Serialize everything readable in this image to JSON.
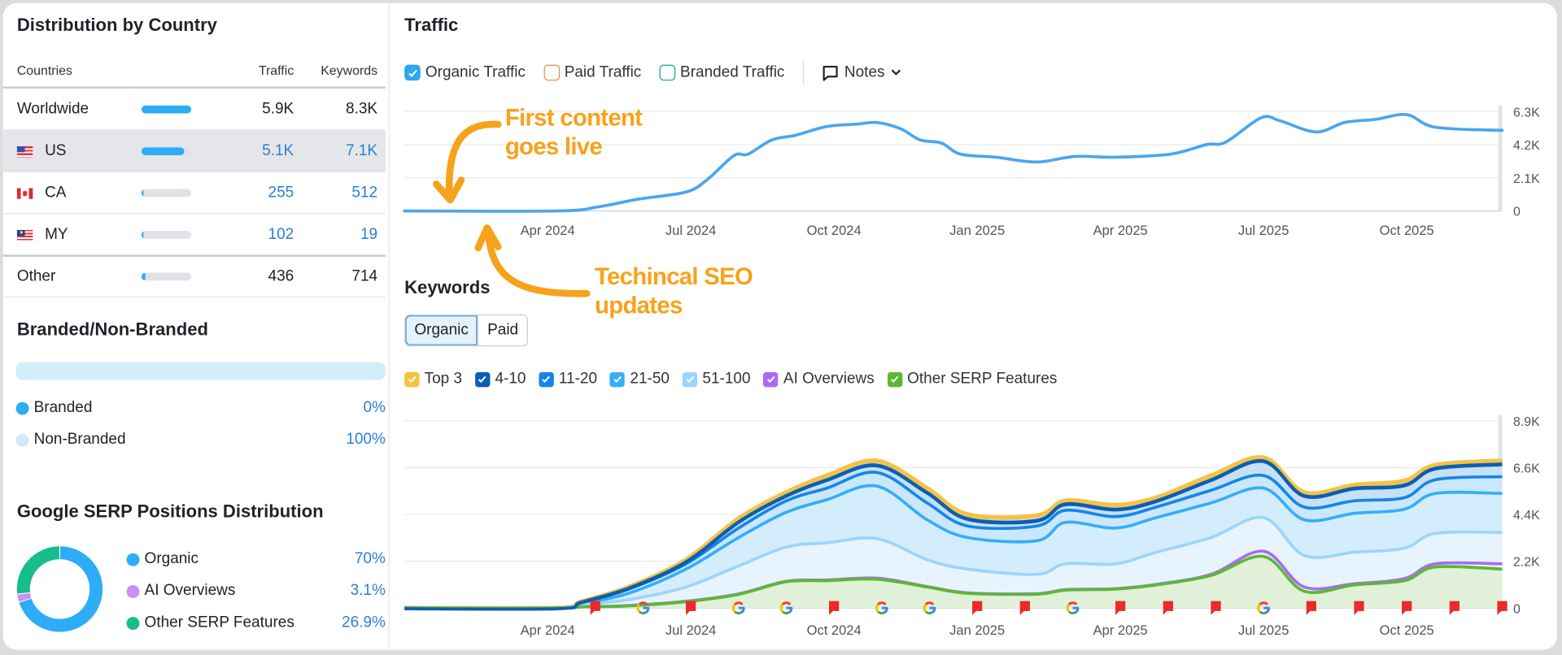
{
  "distribution": {
    "title": "Distribution by Country",
    "headers": {
      "countries": "Countries",
      "traffic": "Traffic",
      "keywords": "Keywords"
    },
    "rows": [
      {
        "name": "Worldwide",
        "flag": "none",
        "share": 1.0,
        "traffic": "5.9K",
        "keywords": "8.3K",
        "highlighted": false
      },
      {
        "name": "US",
        "flag": "us-flag",
        "share": 0.86,
        "traffic": "5.1K",
        "keywords": "7.1K",
        "highlighted": true
      },
      {
        "name": "CA",
        "flag": "ca-flag",
        "share": 0.04,
        "traffic": "255",
        "keywords": "512",
        "highlighted": false
      },
      {
        "name": "MY",
        "flag": "my-flag",
        "share": 0.02,
        "traffic": "102",
        "keywords": "19",
        "highlighted": false
      },
      {
        "name": "Other",
        "flag": "none",
        "share": 0.07,
        "traffic": "436",
        "keywords": "714",
        "highlighted": false
      }
    ]
  },
  "branded": {
    "title": "Branded/Non-Branded",
    "branded_share": 0,
    "items": [
      {
        "label": "Branded",
        "value": "0%",
        "color": "#2cadf6"
      },
      {
        "label": "Non-Branded",
        "value": "100%",
        "color": "#cfe8fb"
      }
    ]
  },
  "serp": {
    "title": "Google SERP Positions Distribution",
    "items": [
      {
        "label": "Organic",
        "value": "70%",
        "percent": 70,
        "color": "#2cadf6"
      },
      {
        "label": "AI Overviews",
        "value": "3.1%",
        "percent": 3.1,
        "color": "#c690f5"
      },
      {
        "label": "Other SERP Features",
        "value": "26.9%",
        "percent": 26.9,
        "color": "#17bd8a"
      }
    ]
  },
  "traffic": {
    "title": "Traffic",
    "toggles": [
      {
        "label": "Organic Traffic",
        "checked": true,
        "color": "#2ea6f4"
      },
      {
        "label": "Paid Traffic",
        "checked": false,
        "color": "#f08a4b"
      },
      {
        "label": "Branded Traffic",
        "checked": false,
        "color": "#1aa38c"
      }
    ],
    "notes_label": "Notes"
  },
  "keywords": {
    "title": "Keywords",
    "tabs": [
      {
        "label": "Organic",
        "active": true
      },
      {
        "label": "Paid",
        "active": false
      }
    ],
    "legend": [
      {
        "label": "Top 3",
        "color": "#f6c244"
      },
      {
        "label": "4-10",
        "color": "#0b5fb3"
      },
      {
        "label": "11-20",
        "color": "#1586e8"
      },
      {
        "label": "21-50",
        "color": "#36aef5"
      },
      {
        "label": "51-100",
        "color": "#9dd4fb"
      },
      {
        "label": "AI Overviews",
        "color": "#a96cf0"
      },
      {
        "label": "Other SERP Features",
        "color": "#5cb832"
      }
    ]
  },
  "annotations": {
    "first_content": [
      "First content",
      "goes live"
    ],
    "technical_seo": [
      "Techincal SEO",
      "updates"
    ],
    "color": "#f7a21b"
  },
  "chart_data": [
    {
      "type": "line",
      "title": "Traffic",
      "x_unit": "months since Jan 2024",
      "x_ticks": [
        {
          "x": 3,
          "label": "Apr 2024"
        },
        {
          "x": 6,
          "label": "Jul 2024"
        },
        {
          "x": 9,
          "label": "Oct 2024"
        },
        {
          "x": 12,
          "label": "Jan 2025"
        },
        {
          "x": 15,
          "label": "Apr 2025"
        },
        {
          "x": 18,
          "label": "Jul 2025"
        },
        {
          "x": 21,
          "label": "Oct 2025"
        }
      ],
      "y_ticks": [
        "6.3K",
        "4.2K",
        "2.1K",
        "0"
      ],
      "xlim": [
        0,
        23
      ],
      "ylim": [
        0,
        6.3
      ],
      "y_unit": "K",
      "grid": true,
      "series": [
        {
          "name": "Organic Traffic",
          "color": "#4aa6ee",
          "x": [
            0,
            3.2,
            4.05,
            4.9,
            5.9,
            6.35,
            6.9,
            7.2,
            7.7,
            8.2,
            8.85,
            9.5,
            9.9,
            10.4,
            10.8,
            11.25,
            11.65,
            12.4,
            13.25,
            14.05,
            14.9,
            16.05,
            16.8,
            17.2,
            17.95,
            18.35,
            19.1,
            19.7,
            20.35,
            21.0,
            21.6,
            23.0
          ],
          "values": [
            0,
            0,
            0.25,
            0.75,
            1.2,
            2.0,
            3.5,
            3.6,
            4.5,
            4.8,
            5.35,
            5.5,
            5.6,
            5.2,
            4.5,
            4.3,
            3.6,
            3.4,
            3.1,
            3.45,
            3.4,
            3.6,
            4.2,
            4.35,
            5.9,
            5.7,
            5.0,
            5.6,
            5.8,
            6.1,
            5.3,
            5.1
          ]
        }
      ]
    },
    {
      "type": "area",
      "title": "Keywords",
      "stacked_cumulative": true,
      "x_unit": "months since Jan 2024",
      "x_ticks": [
        {
          "x": 3,
          "label": "Apr 2024"
        },
        {
          "x": 6,
          "label": "Jul 2024"
        },
        {
          "x": 9,
          "label": "Oct 2024"
        },
        {
          "x": 12,
          "label": "Jan 2025"
        },
        {
          "x": 15,
          "label": "Apr 2025"
        },
        {
          "x": 18,
          "label": "Jul 2025"
        },
        {
          "x": 21,
          "label": "Oct 2025"
        }
      ],
      "y_ticks": [
        "8.9K",
        "6.6K",
        "4.4K",
        "2.2K",
        "0"
      ],
      "xlim": [
        0,
        23
      ],
      "ylim": [
        0,
        8.9
      ],
      "y_unit": "K",
      "grid": true,
      "x": [
        0,
        3.2,
        3.7,
        4.7,
        5.9,
        7.0,
        8.0,
        8.85,
        9.9,
        10.95,
        11.8,
        13.25,
        13.85,
        14.9,
        15.75,
        16.9,
        18.0,
        18.85,
        19.9,
        20.95,
        21.6,
        23.0
      ],
      "series": [
        {
          "name": "Top 3",
          "color": "#f6c244",
          "fill": "#c6e0f6",
          "values": [
            0,
            0,
            0.3,
            1.0,
            2.3,
            4.25,
            5.5,
            6.3,
            7.0,
            5.7,
            4.45,
            4.4,
            5.1,
            4.9,
            5.25,
            6.3,
            7.15,
            5.5,
            5.85,
            6.05,
            6.8,
            7.0
          ]
        },
        {
          "name": "4-10",
          "color": "#0b5fb3",
          "fill": "#c6e0f6",
          "values": [
            0,
            0,
            0.28,
            0.95,
            2.2,
            4.1,
            5.35,
            6.1,
            6.8,
            5.5,
            4.25,
            4.17,
            4.95,
            4.7,
            5.1,
            6.1,
            7.0,
            5.35,
            5.7,
            5.85,
            6.65,
            6.85
          ]
        },
        {
          "name": "11-20",
          "color": "#1586e8",
          "fill": "#cbe7fb",
          "values": [
            0,
            0,
            0.25,
            0.9,
            2.1,
            3.8,
            5.1,
            5.7,
            6.45,
            5.0,
            3.9,
            3.9,
            4.65,
            4.35,
            4.8,
            5.6,
            6.3,
            4.8,
            5.1,
            5.25,
            6.1,
            6.25
          ]
        },
        {
          "name": "21-50",
          "color": "#36aef5",
          "fill": "#d3edfd",
          "values": [
            0,
            0,
            0.2,
            0.7,
            1.85,
            3.35,
            4.55,
            5.15,
            5.8,
            4.2,
            3.35,
            3.2,
            4.07,
            3.8,
            4.3,
            5.0,
            5.7,
            4.2,
            4.5,
            4.7,
            5.45,
            5.45
          ]
        },
        {
          "name": "51-100",
          "color": "#9dd4fb",
          "fill": "#e7f4fe",
          "values": [
            0,
            0,
            0.15,
            0.4,
            1.0,
            2.0,
            2.9,
            3.1,
            3.3,
            2.3,
            1.85,
            1.6,
            2.1,
            2.1,
            2.65,
            3.35,
            4.3,
            2.5,
            2.65,
            2.85,
            3.55,
            3.6
          ]
        },
        {
          "name": "AI Overviews",
          "color": "#a96cf0",
          "fill": "#e1f1d9",
          "values": [
            0,
            0,
            0.05,
            0.12,
            0.32,
            0.67,
            1.27,
            1.33,
            1.42,
            1.02,
            0.72,
            0.68,
            0.87,
            0.92,
            1.12,
            1.6,
            2.7,
            1.0,
            1.15,
            1.4,
            2.1,
            2.1
          ]
        },
        {
          "name": "Other SERP Features",
          "color": "#5cb832",
          "fill": "#e1f1d9",
          "values": [
            0,
            0,
            0.05,
            0.1,
            0.3,
            0.65,
            1.25,
            1.3,
            1.37,
            1.0,
            0.7,
            0.66,
            0.85,
            0.9,
            1.1,
            1.55,
            2.45,
            0.8,
            1.1,
            1.3,
            1.95,
            1.85
          ]
        }
      ],
      "markers": [
        {
          "x": 4,
          "type": "note-flag"
        },
        {
          "x": 5,
          "type": "google-update"
        },
        {
          "x": 6,
          "type": "note-flag"
        },
        {
          "x": 7,
          "type": "google-update"
        },
        {
          "x": 8,
          "type": "google-update"
        },
        {
          "x": 9,
          "type": "note-flag"
        },
        {
          "x": 10,
          "type": "google-update"
        },
        {
          "x": 11,
          "type": "google-update"
        },
        {
          "x": 12,
          "type": "note-flag"
        },
        {
          "x": 13,
          "type": "note-flag"
        },
        {
          "x": 14,
          "type": "google-update"
        },
        {
          "x": 15,
          "type": "note-flag"
        },
        {
          "x": 16,
          "type": "note-flag"
        },
        {
          "x": 17,
          "type": "note-flag"
        },
        {
          "x": 18,
          "type": "google-update"
        },
        {
          "x": 19,
          "type": "note-flag"
        },
        {
          "x": 20,
          "type": "note-flag"
        },
        {
          "x": 21,
          "type": "note-flag"
        },
        {
          "x": 22,
          "type": "note-flag"
        },
        {
          "x": 23,
          "type": "note-flag"
        }
      ]
    }
  ]
}
